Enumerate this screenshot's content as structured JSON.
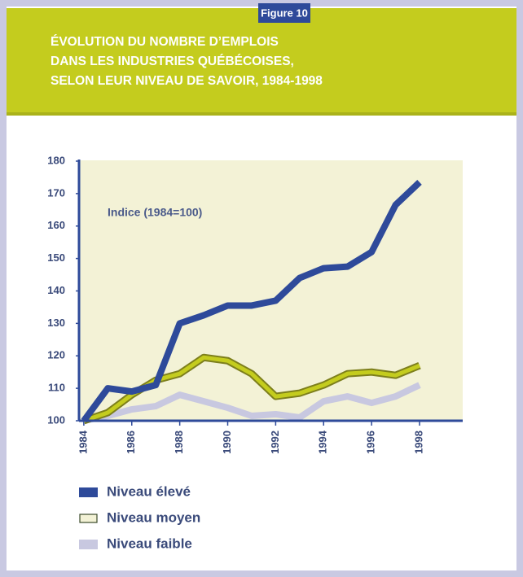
{
  "chart_data": {
    "type": "line",
    "figure_label": "Figure 10",
    "title": [
      "ÉVOLUTION DU NOMBRE D’EMPLOIS",
      "DANS LES INDUSTRIES QUÉBÉCOISES,",
      "SELON LEUR NIVEAU DE SAVOIR, 1984-1998"
    ],
    "annotation": "Indice (1984=100)",
    "x": [
      1984,
      1985,
      1986,
      1987,
      1988,
      1989,
      1990,
      1991,
      1992,
      1993,
      1994,
      1995,
      1996,
      1997,
      1998
    ],
    "xlim": [
      1983.8,
      1999.8
    ],
    "xticks": [
      1984,
      1986,
      1988,
      1990,
      1992,
      1994,
      1996,
      1998
    ],
    "ylim": [
      100,
      180
    ],
    "yticks": [
      100,
      110,
      120,
      130,
      140,
      150,
      160,
      170,
      180
    ],
    "legend": "bottom-left",
    "series": [
      {
        "name": "Niveau élevé",
        "color": "#2e4a9a",
        "values": [
          100,
          110,
          109,
          111,
          130,
          132.5,
          135.5,
          135.5,
          137,
          144,
          147,
          147.5,
          152,
          166.5,
          173.5
        ]
      },
      {
        "name": "Niveau moyen",
        "color": "#c4cc1e",
        "values": [
          100,
          102.5,
          108,
          112.5,
          114.5,
          119.5,
          118.5,
          114.5,
          107.5,
          108.5,
          111,
          114.5,
          115,
          114,
          117
        ]
      },
      {
        "name": "Niveau faible",
        "color": "#c8c8e0",
        "values": [
          100,
          101.5,
          103.5,
          104.5,
          108,
          106,
          104,
          101.5,
          102,
          101,
          106,
          107.5,
          105.5,
          107.5,
          111
        ]
      }
    ]
  }
}
